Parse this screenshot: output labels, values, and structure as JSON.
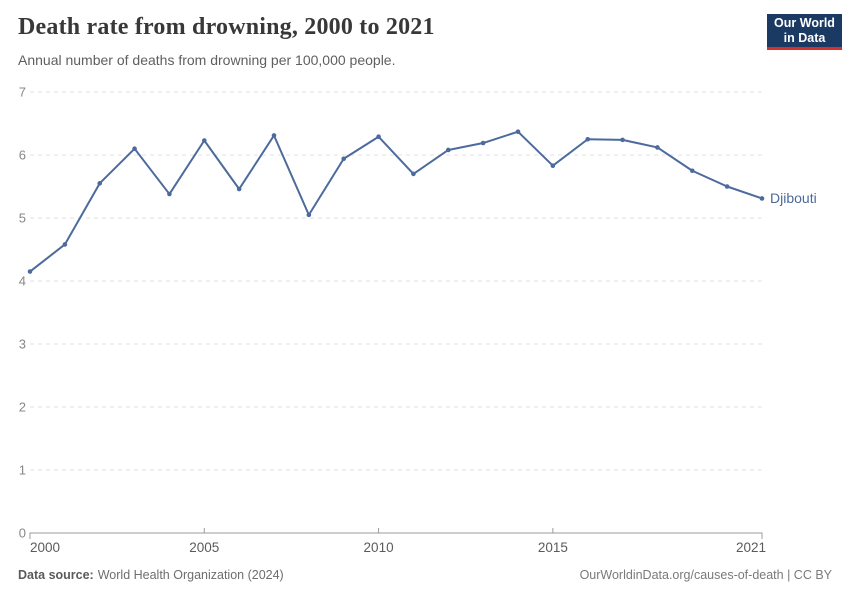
{
  "header": {
    "title": "Death rate from drowning, 2000 to 2021",
    "subtitle": "Annual number of deaths from drowning per 100,000 people.",
    "logo": {
      "line1": "Our World",
      "line2": "in Data",
      "bg_color": "#1a3a63",
      "accent_color": "#d4302e"
    }
  },
  "chart_data": {
    "type": "line",
    "title": "Death rate from drowning, 2000 to 2021",
    "xlabel": "",
    "ylabel": "",
    "xlim": [
      2000,
      2021
    ],
    "ylim": [
      0,
      7
    ],
    "x_ticks": [
      2000,
      2005,
      2010,
      2015,
      2021
    ],
    "y_ticks": [
      0,
      1,
      2,
      3,
      4,
      5,
      6,
      7
    ],
    "grid": "horizontal-dashed",
    "legend_position": "end-of-line-label",
    "series": [
      {
        "name": "Djibouti",
        "color": "#4C6A9C",
        "x": [
          2000,
          2001,
          2002,
          2003,
          2004,
          2005,
          2006,
          2007,
          2008,
          2009,
          2010,
          2011,
          2012,
          2013,
          2014,
          2015,
          2016,
          2017,
          2018,
          2019,
          2020,
          2021
        ],
        "values": [
          4.15,
          4.58,
          5.55,
          6.1,
          5.38,
          6.23,
          5.46,
          6.31,
          5.05,
          5.94,
          6.29,
          5.7,
          6.08,
          6.19,
          6.37,
          5.83,
          6.25,
          6.24,
          6.12,
          5.75,
          5.5,
          5.31
        ]
      }
    ]
  },
  "footer": {
    "datasource_label": "Data source:",
    "datasource_value": "World Health Organization (2024)",
    "license": "OurWorldinData.org/causes-of-death | CC BY"
  }
}
